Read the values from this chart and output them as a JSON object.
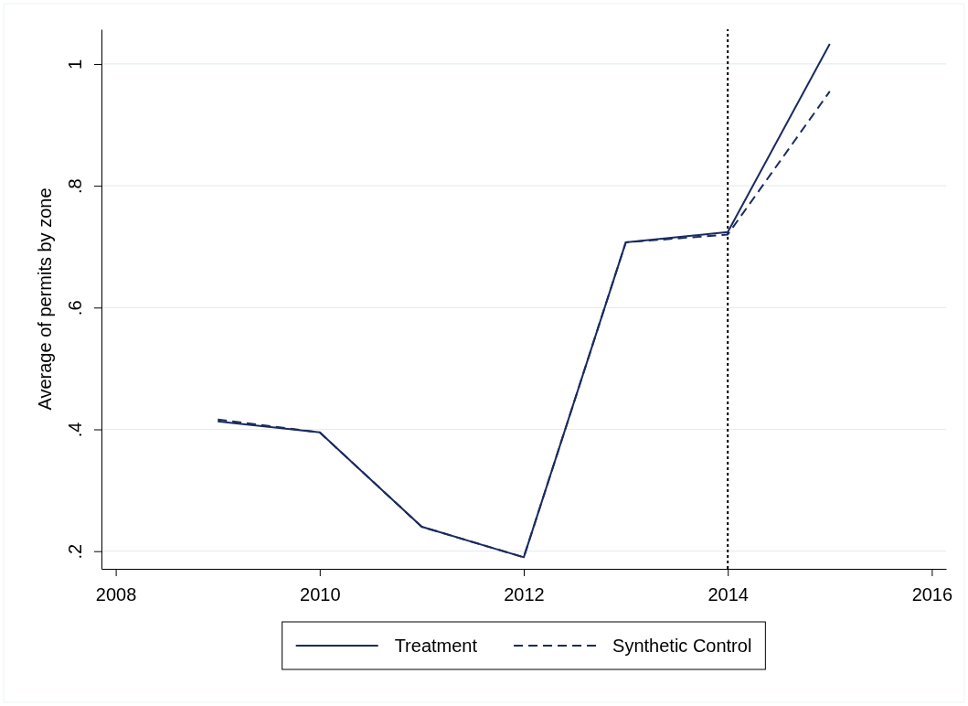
{
  "chart_data": {
    "type": "line",
    "ylabel": "Average of permits by zone",
    "x": [
      2009,
      2010,
      2011,
      2012,
      2013,
      2014,
      2015
    ],
    "series": [
      {
        "name": "Treatment",
        "color": "#1a2b5e",
        "line_style": "solid",
        "values": [
          0.413,
          0.395,
          0.24,
          0.19,
          0.707,
          0.724,
          1.033
        ]
      },
      {
        "name": "Synthetic Control",
        "color": "#1a2b5e",
        "line_style": "dashed",
        "values": [
          0.416,
          0.395,
          0.24,
          0.19,
          0.707,
          0.72,
          0.955
        ]
      }
    ],
    "xlim": [
      2007.86,
      2016.14
    ],
    "xticks": [
      2008,
      2010,
      2012,
      2014,
      2016
    ],
    "ylim": [
      0.171,
      1.057
    ],
    "yticks": [
      {
        "value": 0.2,
        "label": ".2"
      },
      {
        "value": 0.4,
        "label": ".4"
      },
      {
        "value": 0.6,
        "label": ".6"
      },
      {
        "value": 0.8,
        "label": ".8"
      },
      1
    ],
    "grid": "y",
    "legend": "bottom",
    "marker": "none",
    "ref_lines": [
      {
        "axis": "x",
        "value": 2014,
        "color": "#000000",
        "line_style": "dotted"
      }
    ]
  }
}
